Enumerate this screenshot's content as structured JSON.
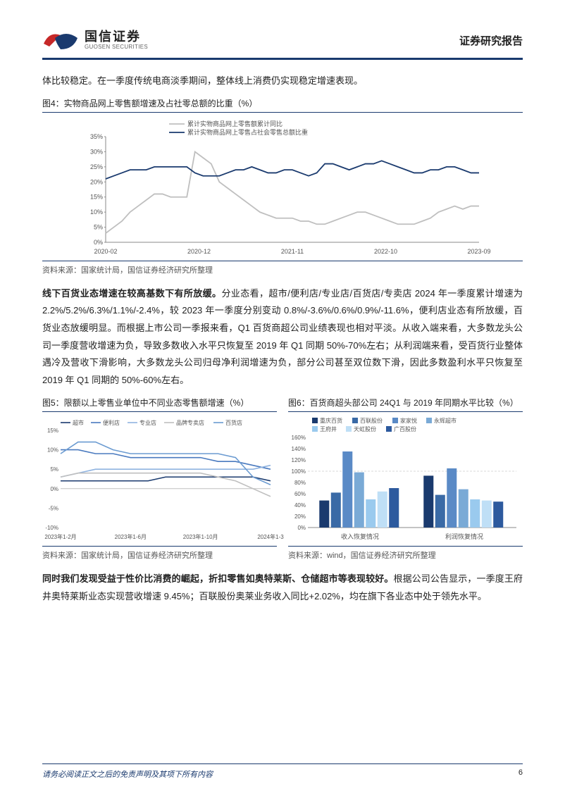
{
  "header": {
    "logo_cn": "国信证券",
    "logo_en": "GUOSEN SECURITIES",
    "right": "证券研究报告"
  },
  "intro_text": "体比较稳定。在一季度传统电商淡季期间，整体线上消费仍实现稳定增速表现。",
  "fig4": {
    "title": "图4：实物商品网上零售额增速及占社零总额的比重（%）",
    "source": "资料来源：国家统计局，国信证券经济研究所整理",
    "type": "line",
    "legend": [
      "累计实物商品网上零售额累计同比",
      "累计实物商品网上零售占社会零售总额比重"
    ],
    "x_labels": [
      "2020-02",
      "2020-12",
      "2021-11",
      "2022-10",
      "2023-09"
    ],
    "ylim": [
      0,
      35
    ],
    "ytick_step": 5,
    "colors": {
      "line1": "#bfbfbf",
      "line2": "#1a3a6e",
      "axis": "#888",
      "grid": "#e8e8e8"
    },
    "series1": [
      3,
      5,
      7,
      10,
      12,
      14,
      16,
      16,
      15,
      15,
      15,
      30,
      28,
      26,
      20,
      18,
      16,
      14,
      12,
      10,
      9,
      8,
      8,
      8,
      7,
      7,
      6,
      6,
      7,
      8,
      9,
      10,
      10,
      9,
      8,
      7,
      6,
      6,
      6,
      7,
      8,
      10,
      11,
      12,
      11,
      12,
      12
    ],
    "series2": [
      21,
      22,
      23,
      24,
      24,
      24,
      25,
      25,
      25,
      25,
      25,
      23,
      22,
      22,
      22,
      23,
      24,
      24,
      25,
      24,
      23,
      23,
      24,
      24,
      23,
      22,
      23,
      26,
      26,
      25,
      24,
      25,
      26,
      26,
      27,
      26,
      25,
      24,
      23,
      23,
      24,
      24,
      25,
      25,
      24,
      23,
      23
    ],
    "line_width": 1.8
  },
  "mid_para": {
    "bold": "线下百货业态增速在较高基数下有所放缓。",
    "rest": "分业态看，超市/便利店/专业店/百货店/专卖店 2024 年一季度累计增速为 2.2%/5.2%/6.3%/1.1%/-2.4%，较 2023 年一季度分别变动 0.8%/-3.6%/0.6%/0.9%/-11.6%，便利店业态有所放缓，百货业态放缓明显。而根据上市公司一季报来看，Q1 百货商超公司业绩表现也相对平淡。从收入端来看，大多数龙头公司一季度营收增速为负，导致多数收入水平只恢复至 2019 年 Q1 同期 50%-70%左右；从利润端来看，受百货行业整体遇冷及营收下滑影响，大多数龙头公司归母净利润增速为负，部分公司甚至双位数下滑，因此多数盈利水平只恢复至 2019 年 Q1 同期的 50%-60%左右。"
  },
  "fig5": {
    "title": "图5：限额以上零售业单位中不同业态零售额增速（%）",
    "source": "资料来源：国家统计局，国信证券经济研究所整理",
    "type": "line",
    "legend": [
      "超市",
      "便利店",
      "专业店",
      "品牌专卖店",
      "百货店"
    ],
    "x_labels": [
      "2023年1-2月",
      "2023年1-6月",
      "2023年1-10月",
      "2024年1-3"
    ],
    "ylim": [
      -10,
      15
    ],
    "yticks": [
      -10,
      -5,
      0,
      5,
      10,
      15
    ],
    "colors": {
      "c1": "#1a3a6e",
      "c2": "#4a7abf",
      "c3": "#8fb3e0",
      "c4": "#bfbfbf",
      "c5": "#6b9bd1",
      "axis": "#888"
    },
    "series": {
      "supermarket": [
        2,
        2,
        2,
        2,
        2,
        2,
        3,
        3,
        3,
        3,
        3,
        3,
        2
      ],
      "convenience": [
        10,
        10,
        9,
        9,
        8,
        8,
        8,
        8,
        8,
        7,
        7,
        6,
        5
      ],
      "specialty": [
        3,
        4,
        5,
        5,
        5,
        5,
        5,
        5,
        5,
        5,
        5,
        5,
        6
      ],
      "brand": [
        3,
        4,
        4,
        4,
        4,
        4,
        4,
        4,
        4,
        3,
        2,
        0,
        -2
      ],
      "department": [
        9,
        12,
        12,
        10,
        9,
        9,
        9,
        9,
        9,
        9,
        8,
        3,
        1
      ]
    },
    "line_width": 1.6
  },
  "fig6": {
    "title": "图6：百货商超头部公司 24Q1 与 2019 年同期水平比较（%）",
    "source": "资料来源：wind，国信证券经济研究所整理",
    "type": "bar",
    "legend": [
      {
        "name": "重庆百货",
        "color": "#1a3a6e"
      },
      {
        "name": "百联股份",
        "color": "#3a6aa6"
      },
      {
        "name": "家家悦",
        "color": "#5a8ac6"
      },
      {
        "name": "永辉超市",
        "color": "#7aaad6"
      },
      {
        "name": "王府井",
        "color": "#9acaee"
      },
      {
        "name": "天虹股份",
        "color": "#bfdff6"
      },
      {
        "name": "广百股份",
        "color": "#2d5a9e"
      }
    ],
    "groups": [
      "收入恢复情况",
      "利润恢复情况"
    ],
    "ylim": [
      0,
      160
    ],
    "ytick_step": 20,
    "data": {
      "grp1": [
        48,
        62,
        135,
        98,
        50,
        64,
        70
      ],
      "grp2": [
        92,
        58,
        105,
        68,
        50,
        48,
        46
      ]
    },
    "ref_line": 100,
    "colors": {
      "axis": "#888",
      "ref": "#d9d9d9"
    },
    "bar_width": 0.85
  },
  "last_para": {
    "bold": "同时我们发现受益于性价比消费的崛起，折扣零售如奥特莱斯、仓储超市等表现较好。",
    "rest": "根据公司公告显示，一季度王府井奥特莱斯业态实现营收增速 9.45%；百联股份奥莱业务收入同比+2.02%，均在旗下各业态中处于领先水平。"
  },
  "footer": {
    "left": "请务必阅读正文之后的免责声明及其项下所有内容",
    "page": "6"
  }
}
